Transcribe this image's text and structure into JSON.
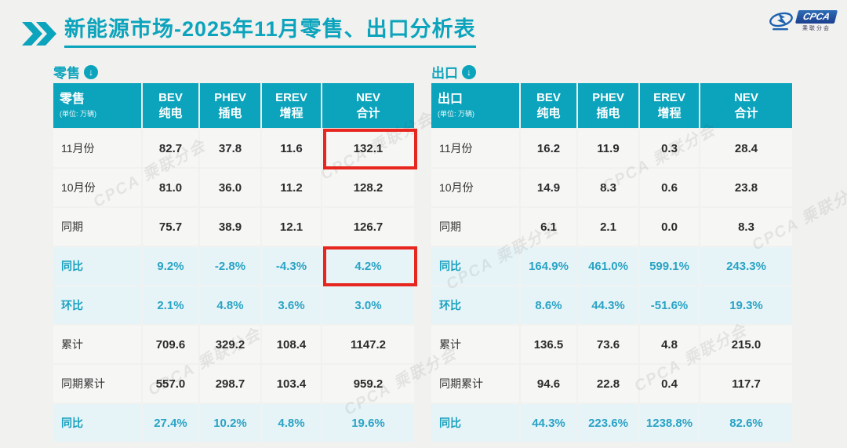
{
  "page": {
    "title_main": "新能源市场",
    "title_rest": "-2025年11月零售、出口分析表",
    "accent_color": "#0BA4BC",
    "background_color": "#F1F1EF",
    "highlight_box_color": "#E6261F"
  },
  "logo": {
    "brand": "CPCA",
    "subtitle": "乘联分会"
  },
  "icons": {
    "section_down_arrow": "↓"
  },
  "watermark_text": "CPCA 乘联分会",
  "chart_data": [
    {
      "type": "table",
      "name": "retail",
      "section_label": "零售",
      "header_title": "零售",
      "unit_note": "(单位: 万辆)",
      "columns": [
        {
          "line1": "BEV",
          "line2": "纯电"
        },
        {
          "line1": "PHEV",
          "line2": "插电"
        },
        {
          "line1": "EREV",
          "line2": "增程"
        },
        {
          "line1": "NEV",
          "line2": "合计"
        }
      ],
      "rows": [
        {
          "label": "11月份",
          "highlight": false,
          "values": [
            "82.7",
            "37.8",
            "11.6",
            "132.1"
          ]
        },
        {
          "label": "10月份",
          "highlight": false,
          "values": [
            "81.0",
            "36.0",
            "11.2",
            "128.2"
          ]
        },
        {
          "label": "同期",
          "highlight": false,
          "values": [
            "75.7",
            "38.9",
            "12.1",
            "126.7"
          ]
        },
        {
          "label": "同比",
          "highlight": true,
          "values": [
            "9.2%",
            "-2.8%",
            "-4.3%",
            "4.2%"
          ]
        },
        {
          "label": "环比",
          "highlight": true,
          "values": [
            "2.1%",
            "4.8%",
            "3.6%",
            "3.0%"
          ]
        },
        {
          "label": "累计",
          "highlight": false,
          "values": [
            "709.6",
            "329.2",
            "108.4",
            "1147.2"
          ]
        },
        {
          "label": "同期累计",
          "highlight": false,
          "values": [
            "557.0",
            "298.7",
            "103.4",
            "959.2"
          ]
        },
        {
          "label": "同比",
          "highlight": true,
          "values": [
            "27.4%",
            "10.2%",
            "4.8%",
            "19.6%"
          ]
        }
      ],
      "highlight_boxes": [
        {
          "row": "11月份",
          "column": "NEV 合计",
          "value": "132.1"
        },
        {
          "row": "同比",
          "column": "NEV 合计",
          "value": "4.2%"
        }
      ]
    },
    {
      "type": "table",
      "name": "export",
      "section_label": "出口",
      "header_title": "出口",
      "unit_note": "(单位: 万辆)",
      "columns": [
        {
          "line1": "BEV",
          "line2": "纯电"
        },
        {
          "line1": "PHEV",
          "line2": "插电"
        },
        {
          "line1": "EREV",
          "line2": "增程"
        },
        {
          "line1": "NEV",
          "line2": "合计"
        }
      ],
      "rows": [
        {
          "label": "11月份",
          "highlight": false,
          "values": [
            "16.2",
            "11.9",
            "0.3",
            "28.4"
          ]
        },
        {
          "label": "10月份",
          "highlight": false,
          "values": [
            "14.9",
            "8.3",
            "0.6",
            "23.8"
          ]
        },
        {
          "label": "同期",
          "highlight": false,
          "values": [
            "6.1",
            "2.1",
            "0.0",
            "8.3"
          ]
        },
        {
          "label": "同比",
          "highlight": true,
          "values": [
            "164.9%",
            "461.0%",
            "599.1%",
            "243.3%"
          ]
        },
        {
          "label": "环比",
          "highlight": true,
          "values": [
            "8.6%",
            "44.3%",
            "-51.6%",
            "19.3%"
          ]
        },
        {
          "label": "累计",
          "highlight": false,
          "values": [
            "136.5",
            "73.6",
            "4.8",
            "215.0"
          ]
        },
        {
          "label": "同期累计",
          "highlight": false,
          "values": [
            "94.6",
            "22.8",
            "0.4",
            "117.7"
          ]
        },
        {
          "label": "同比",
          "highlight": true,
          "values": [
            "44.3%",
            "223.6%",
            "1238.8%",
            "82.6%"
          ]
        }
      ],
      "highlight_boxes": []
    }
  ]
}
